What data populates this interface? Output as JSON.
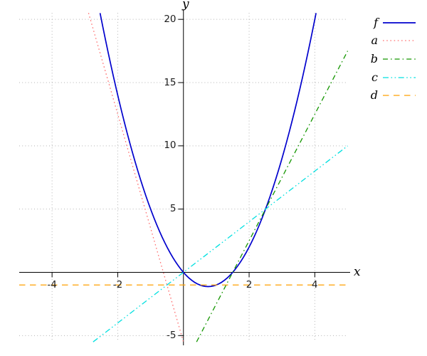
{
  "chart_data": {
    "type": "line",
    "title": "",
    "xlabel": "x",
    "ylabel": "y",
    "xlim": [
      -5,
      5
    ],
    "ylim": [
      -5.5,
      20.5
    ],
    "x_ticks": [
      -4,
      -2,
      2,
      4
    ],
    "y_ticks": [
      -5,
      5,
      10,
      15,
      20
    ],
    "grid": true,
    "grid_style": "dotted",
    "legend_position": "outside-top-right",
    "axis_color": "#000000",
    "grid_color": "#b3b3b3",
    "series": [
      {
        "name": "f",
        "kind": "quadratic",
        "equation": "f(x) = 2x^2 - 3x",
        "quad": {
          "a": 2,
          "b": -3,
          "c": 0
        },
        "domain": [
          -2.538,
          4.038
        ],
        "color": "#0000cd",
        "style": "solid",
        "width": 1.7
      },
      {
        "name": "a",
        "kind": "linear",
        "equation": "a(x) = -9x - 5.5",
        "points": [
          [
            -2.889,
            20.5
          ],
          [
            0,
            -5.5
          ]
        ],
        "color": "#ff7070",
        "style": "dotted",
        "width": 1.3
      },
      {
        "name": "b",
        "kind": "linear",
        "equation": "b(x) = 5x - 7.5",
        "points": [
          [
            0.4,
            -5.5
          ],
          [
            5,
            17.5
          ]
        ],
        "color": "#149600",
        "style": "dash-dot",
        "width": 1.3
      },
      {
        "name": "c",
        "kind": "linear",
        "equation": "c(x) = 2x",
        "points": [
          [
            -2.75,
            -5.5
          ],
          [
            5,
            10
          ]
        ],
        "color": "#00e0e0",
        "style": "dash-dot-dot",
        "width": 1.3
      },
      {
        "name": "d",
        "kind": "linear",
        "equation": "d(x) = -1",
        "points": [
          [
            -5,
            -1
          ],
          [
            5,
            -1
          ]
        ],
        "color": "#ffa000",
        "style": "dashed",
        "width": 1.3
      }
    ]
  }
}
